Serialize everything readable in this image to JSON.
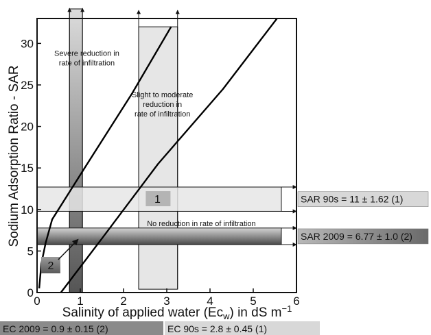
{
  "chart_data": {
    "type": "line",
    "xlabel": "Salinity of applied water (Ec",
    "xlabel_sub": "w",
    "xlabel_tail": ") in dS m",
    "xlabel_sup": "−1",
    "ylabel": "Sodium Adsorption Ratio - SAR",
    "xlim": [
      0,
      6
    ],
    "ylim": [
      0,
      33
    ],
    "x_ticks": [
      0,
      1,
      2,
      3,
      4,
      5,
      6
    ],
    "y_ticks": [
      0,
      5,
      10,
      15,
      20,
      25,
      30
    ],
    "grid": false,
    "series": [
      {
        "points": [
          [
            0.05,
            0.5
          ],
          [
            0.1,
            3.5
          ],
          [
            0.2,
            6.0
          ],
          [
            0.35,
            8.8
          ],
          [
            1.1,
            15.0
          ],
          [
            2.2,
            24.0
          ],
          [
            3.1,
            32.0
          ]
        ]
      },
      {
        "points": [
          [
            0.55,
            0.0
          ],
          [
            1.5,
            6.5
          ],
          [
            2.8,
            15.5
          ],
          [
            4.3,
            24.5
          ],
          [
            5.55,
            33.0
          ]
        ]
      }
    ],
    "zones": [
      {
        "lines": [
          "Severe reduction in",
          "rate of infiltration"
        ],
        "x": 1.15,
        "y": 28.5
      },
      {
        "lines": [
          "Slight to moderate",
          "reduction in",
          "rate of infiltration"
        ],
        "x": 2.9,
        "y": 23.5
      },
      {
        "lines": [
          "No reduction in rate of infiltration"
        ],
        "x": 3.8,
        "y": 8.0
      }
    ],
    "sar_bands": [
      {
        "label": "SAR 90s = 11 ± 1.62 (1)",
        "value": 11,
        "error": 1.62
      },
      {
        "label": "SAR 2009 = 6.77 ± 1.0 (2)",
        "value": 6.77,
        "error": 1.0
      }
    ],
    "ec_bands": [
      {
        "label": "EC 2009 = 0.9 ± 0.15 (2)",
        "value": 0.9,
        "error": 0.15
      },
      {
        "label": "EC 90s = 2.8 ± 0.45 (1)",
        "value": 2.8,
        "error": 0.45
      }
    ],
    "markers": [
      {
        "label": "1",
        "x": 2.8,
        "y": 11.3
      },
      {
        "label": "2",
        "x": 0.3,
        "y": 3.3
      }
    ],
    "colors": {
      "axis": "#111111",
      "line": "#000000",
      "band_light": "#e6e6e6",
      "band_dark_top": "#c8c8c8",
      "band_dark_bottom": "#5a5a5a",
      "label_light": "#d8d8d8",
      "label_dark": "#8a8a8a"
    }
  }
}
